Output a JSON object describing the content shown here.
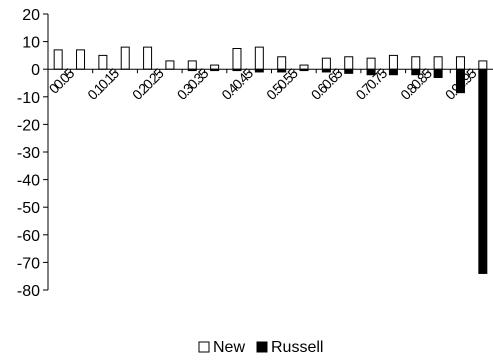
{
  "chart_data": {
    "type": "bar",
    "categories": [
      "0.05",
      "0.1",
      "0.15",
      "0.2",
      "0.25",
      "0.3",
      "0.35",
      "0.4",
      "0.45",
      "0.5",
      "0.55",
      "0.6",
      "0.65",
      "0.7",
      "0.75",
      "0.8",
      "0.85",
      "0.9",
      "0.95",
      "1"
    ],
    "x_tick_labels": [
      "00.05",
      "0.10.15",
      "0.20.25",
      "0.30.35",
      "0.40.45",
      "0.50.55",
      "0.60.65",
      "0.70.75",
      "0.80.85",
      "0.90.95"
    ],
    "series": [
      {
        "name": "New",
        "color": "#ffffff",
        "stroke": "#000000",
        "values": [
          7,
          7,
          5,
          8,
          8,
          3,
          3,
          1.5,
          7.5,
          8,
          4.5,
          1.5,
          4,
          4.5,
          4,
          5,
          4.5,
          4.5,
          4.5,
          3
        ]
      },
      {
        "name": "Russell",
        "color": "#000000",
        "stroke": "#000000",
        "values": [
          0,
          0,
          0,
          0,
          0,
          0,
          -0.5,
          -0.5,
          -0.5,
          -1,
          -1,
          -0.5,
          -1,
          -1.5,
          -2,
          -2,
          -2,
          -3,
          -8.5,
          -74
        ]
      }
    ],
    "yticks": [
      20,
      10,
      0,
      -10,
      -20,
      -30,
      -40,
      -50,
      -60,
      -70,
      -80
    ],
    "ylim": [
      -80,
      20
    ],
    "grid": false,
    "legend": "bottom"
  }
}
